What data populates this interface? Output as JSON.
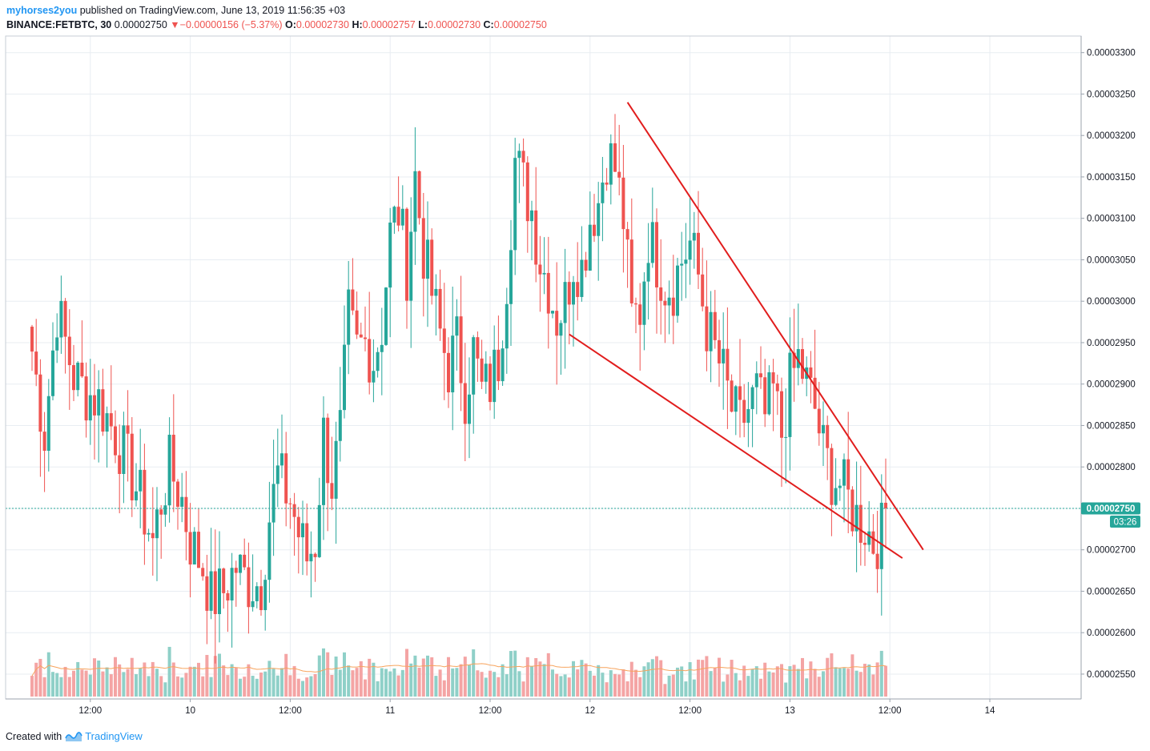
{
  "header": {
    "author": "myhorses2you",
    "published_text": "published on TradingView.com, June 13, 2019 11:56:35 +03",
    "symbol": "BINANCE:FETBTC, 30",
    "last": "0.00002750",
    "change": "−0.00000156 (−5.37%)",
    "open_label": "O:",
    "open": "0.00002730",
    "high_label": "H:",
    "high": "0.00002757",
    "low_label": "L:",
    "low": "0.00002730",
    "close_label": "C:",
    "close": "0.00002750"
  },
  "footer": {
    "created_with": "Created with",
    "brand": "TradingView"
  },
  "colors": {
    "up": "#26a69a",
    "down": "#ef5350",
    "up_volume": "#8fd0c8",
    "down_volume": "#f4a4a4",
    "trendline": "#e11d1d",
    "ma": "#f7a35c",
    "price_badge": "#26a69a",
    "grid": "#e8edf2"
  },
  "chart_data": {
    "type": "candlestick",
    "title": "BINANCE:FETBTC, 30",
    "y_range": [
      2.52e-05,
      3.32e-05
    ],
    "y_ticks": [
      "0.00003300",
      "0.00003250",
      "0.00003200",
      "0.00003150",
      "0.00003100",
      "0.00003050",
      "0.00003000",
      "0.00002950",
      "0.00002900",
      "0.00002850",
      "0.00002800",
      "0.00002750",
      "0.00002700",
      "0.00002650",
      "0.00002600",
      "0.00002550"
    ],
    "x_range_bars": [
      0,
      255
    ],
    "x_ticks": [
      {
        "bar": 14,
        "label": "12:00"
      },
      {
        "bar": 38,
        "label": "10"
      },
      {
        "bar": 62,
        "label": "12:00"
      },
      {
        "bar": 86,
        "label": "11"
      },
      {
        "bar": 110,
        "label": "12:00"
      },
      {
        "bar": 134,
        "label": "12"
      },
      {
        "bar": 158,
        "label": "12:00"
      },
      {
        "bar": 182,
        "label": "13"
      },
      {
        "bar": 206,
        "label": "12:00"
      },
      {
        "bar": 230,
        "label": "14"
      }
    ],
    "last_price": {
      "value": 2.75e-05,
      "label": "0.00002750",
      "countdown": "03:26"
    },
    "anchors": [
      [
        0,
        2.94e-05
      ],
      [
        3,
        2.84e-05
      ],
      [
        6,
        2.99e-05
      ],
      [
        10,
        2.91e-05
      ],
      [
        13,
        2.89e-05
      ],
      [
        16,
        2.88e-05
      ],
      [
        20,
        2.84e-05
      ],
      [
        24,
        2.79e-05
      ],
      [
        26,
        2.76e-05
      ],
      [
        29,
        2.71e-05
      ],
      [
        31,
        2.76e-05
      ],
      [
        33,
        2.8e-05
      ],
      [
        36,
        2.76e-05
      ],
      [
        38,
        2.71e-05
      ],
      [
        41,
        2.68e-05
      ],
      [
        43,
        2.64e-05
      ],
      [
        46,
        2.65e-05
      ],
      [
        49,
        2.68e-05
      ],
      [
        52,
        2.66e-05
      ],
      [
        55,
        2.66e-05
      ],
      [
        57,
        2.74e-05
      ],
      [
        59,
        2.79e-05
      ],
      [
        62,
        2.76e-05
      ],
      [
        64,
        2.72e-05
      ],
      [
        66,
        2.69e-05
      ],
      [
        68,
        2.71e-05
      ],
      [
        70,
        2.84e-05
      ],
      [
        72,
        2.78e-05
      ],
      [
        74,
        2.84e-05
      ],
      [
        76,
        2.98e-05
      ],
      [
        78,
        2.94e-05
      ],
      [
        80,
        2.95e-05
      ],
      [
        82,
        2.93e-05
      ],
      [
        84,
        2.97e-05
      ],
      [
        86,
        3.08e-05
      ],
      [
        88,
        3.11e-05
      ],
      [
        90,
        3.04e-05
      ],
      [
        92,
        3.15e-05
      ],
      [
        94,
        3.06e-05
      ],
      [
        96,
        3.01e-05
      ],
      [
        98,
        2.96e-05
      ],
      [
        100,
        2.92e-05
      ],
      [
        102,
        2.95e-05
      ],
      [
        104,
        2.89e-05
      ],
      [
        106,
        2.94e-05
      ],
      [
        108,
        2.89e-05
      ],
      [
        110,
        2.9e-05
      ],
      [
        112,
        2.93e-05
      ],
      [
        114,
        3.03e-05
      ],
      [
        116,
        3.17e-05
      ],
      [
        118,
        3.14e-05
      ],
      [
        120,
        3.11e-05
      ],
      [
        122,
        3.05e-05
      ],
      [
        124,
        3.02e-05
      ],
      [
        126,
        2.98e-05
      ],
      [
        128,
        3e-05
      ],
      [
        130,
        3.05e-05
      ],
      [
        132,
        3.04e-05
      ],
      [
        134,
        3.1e-05
      ],
      [
        136,
        3.12e-05
      ],
      [
        138,
        3.18e-05
      ],
      [
        140,
        3.16e-05
      ],
      [
        142,
        3.1e-05
      ],
      [
        144,
        2.98e-05
      ],
      [
        146,
        2.99e-05
      ],
      [
        148,
        3.08e-05
      ],
      [
        150,
        3.05e-05
      ],
      [
        152,
        3.02e-05
      ],
      [
        154,
        3.02e-05
      ],
      [
        156,
        3.05e-05
      ],
      [
        158,
        3.07e-05
      ],
      [
        160,
        3.03e-05
      ],
      [
        162,
        2.97e-05
      ],
      [
        164,
        2.94e-05
      ],
      [
        166,
        2.91e-05
      ],
      [
        168,
        2.87e-05
      ],
      [
        170,
        2.85e-05
      ],
      [
        172,
        2.87e-05
      ],
      [
        174,
        2.89e-05
      ],
      [
        176,
        2.86e-05
      ],
      [
        178,
        2.89e-05
      ],
      [
        180,
        2.84e-05
      ],
      [
        182,
        2.9e-05
      ],
      [
        184,
        2.93e-05
      ],
      [
        186,
        2.9e-05
      ],
      [
        188,
        2.87e-05
      ],
      [
        190,
        2.82e-05
      ],
      [
        192,
        2.79e-05
      ],
      [
        194,
        2.78e-05
      ],
      [
        196,
        2.76e-05
      ],
      [
        198,
        2.74e-05
      ],
      [
        200,
        2.73e-05
      ],
      [
        202,
        2.71e-05
      ],
      [
        204,
        2.72e-05
      ],
      [
        205,
        2.75e-05
      ]
    ],
    "trendlines": [
      {
        "name": "upper",
        "from": [
          143,
          3.24e-05
        ],
        "to": [
          214,
          2.7e-05
        ]
      },
      {
        "name": "lower",
        "from": [
          129,
          2.96e-05
        ],
        "to": [
          209,
          2.69e-05
        ]
      }
    ]
  }
}
